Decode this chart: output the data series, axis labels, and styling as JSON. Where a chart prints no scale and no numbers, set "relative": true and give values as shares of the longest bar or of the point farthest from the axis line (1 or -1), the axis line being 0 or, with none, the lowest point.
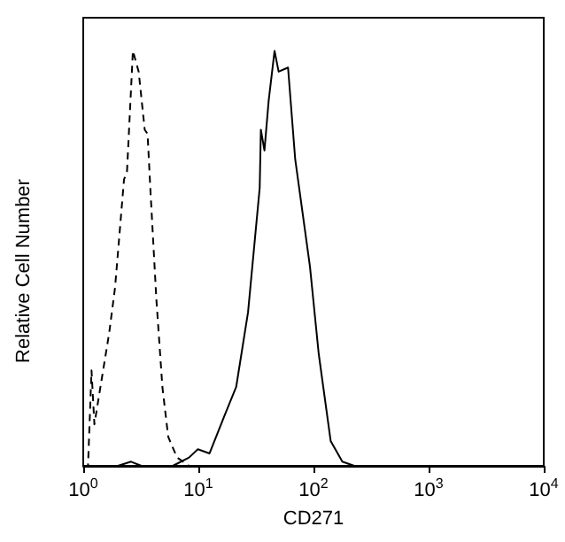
{
  "chart_data": {
    "type": "line",
    "relative": true,
    "xlabel": "CD271",
    "ylabel": "Relative Cell Number",
    "log": "x",
    "xlim": [
      1,
      10000
    ],
    "xticks": [
      {
        "value": 1,
        "label": "10$^{0}$"
      },
      {
        "value": 10,
        "label": "10$^{1}$"
      },
      {
        "value": 100,
        "label": "10$^{2}$"
      },
      {
        "value": 1000,
        "label": "10$^{3}$"
      },
      {
        "value": 10000,
        "label": "10$^{4}$"
      }
    ],
    "grid": false,
    "marker": "none",
    "series": [
      {
        "color": "#000000",
        "line_style": "dashed",
        "x": [
          1,
          1.1,
          1.18,
          1.25,
          1.41,
          1.68,
          1.89,
          2.26,
          2.4,
          2.7,
          3.03,
          3.42,
          3.62,
          3.84,
          4.32,
          4.87,
          5.47,
          6.53,
          8.3,
          100,
          10000
        ],
        "values": [
          0,
          0,
          0.23,
          0.1,
          0.19,
          0.32,
          0.43,
          0.69,
          0.71,
          1.0,
          0.95,
          0.81,
          0.8,
          0.66,
          0.4,
          0.19,
          0.07,
          0.02,
          0,
          0,
          0
        ]
      },
      {
        "color": "#000000",
        "line_style": "solid",
        "x": [
          1,
          2,
          2.6,
          3.2,
          6,
          8.3,
          9.9,
          12.5,
          16.8,
          21.3,
          27,
          34.1,
          34.9,
          37.5,
          40.8,
          45.9,
          49.8,
          60.1,
          69.3,
          93.2,
          111,
          141,
          178,
          226,
          10000
        ],
        "values": [
          0,
          0,
          0.01,
          0,
          0,
          0.02,
          0.04,
          0.03,
          0.12,
          0.19,
          0.37,
          0.67,
          0.81,
          0.76,
          0.88,
          1.0,
          0.95,
          0.96,
          0.74,
          0.48,
          0.27,
          0.06,
          0.01,
          0,
          0
        ]
      }
    ]
  }
}
